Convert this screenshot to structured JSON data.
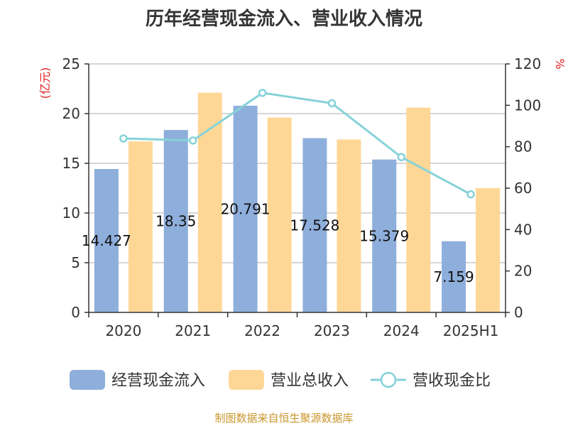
{
  "chart_data": {
    "title": "历年经营现金流入、营业收入情况",
    "left_unit": "(亿元)",
    "right_unit": "%",
    "categories": [
      "2020",
      "2021",
      "2022",
      "2023",
      "2024",
      "2025H1"
    ],
    "left_axis": {
      "min": 0,
      "max": 25,
      "ticks": [
        "0",
        "5",
        "10",
        "15",
        "20",
        "25"
      ]
    },
    "right_axis": {
      "min": 0,
      "max": 120,
      "ticks": [
        "0",
        "20",
        "40",
        "60",
        "80",
        "100",
        "120"
      ]
    },
    "series": [
      {
        "name": "经营现金流入",
        "type": "bar",
        "axis": "left",
        "color": "#8eaedb",
        "values": [
          14.427,
          18.35,
          20.791,
          17.528,
          15.379,
          7.159
        ],
        "labels": [
          "14.427",
          "18.35",
          "20.791",
          "17.528",
          "15.379",
          "7.159"
        ]
      },
      {
        "name": "营业总收入",
        "type": "bar",
        "axis": "left",
        "color": "#fed797",
        "values": [
          17.2,
          22.1,
          19.6,
          17.4,
          20.6,
          12.5
        ]
      },
      {
        "name": "营收现金比",
        "type": "line",
        "axis": "right",
        "color": "#86d2d8",
        "values": [
          84,
          83,
          106,
          101,
          75,
          57
        ]
      }
    ],
    "grid": true
  },
  "source_note": "制图数据来自恒生聚源数据库"
}
